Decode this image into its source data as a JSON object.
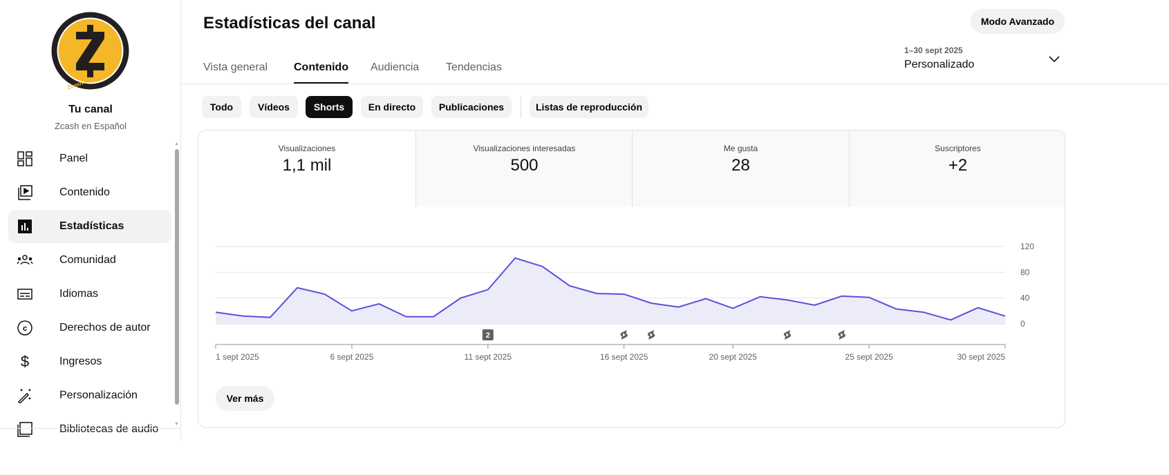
{
  "sidebar": {
    "channel_title": "Tu canal",
    "channel_name": "Zcash en Español",
    "avatar_text": "Zcash en español",
    "items": [
      {
        "label": "Panel",
        "icon": "dashboard-icon"
      },
      {
        "label": "Contenido",
        "icon": "content-icon"
      },
      {
        "label": "Estadísticas",
        "icon": "analytics-icon",
        "active": true
      },
      {
        "label": "Comunidad",
        "icon": "community-icon"
      },
      {
        "label": "Idiomas",
        "icon": "subtitles-icon"
      },
      {
        "label": "Derechos de autor",
        "icon": "copyright-icon"
      },
      {
        "label": "Ingresos",
        "icon": "dollar-icon"
      },
      {
        "label": "Personalización",
        "icon": "magic-wand-icon"
      },
      {
        "label": "Bibliotecas de audio",
        "icon": "audio-library-icon"
      }
    ]
  },
  "header": {
    "title": "Estadísticas del canal",
    "advanced_mode": "Modo Avanzado",
    "tabs": [
      "Vista general",
      "Contenido",
      "Audiencia",
      "Tendencias"
    ],
    "active_tab": "Contenido",
    "date_range": "1–30 sept 2025",
    "date_mode": "Personalizado"
  },
  "chips": [
    "Todo",
    "Vídeos",
    "Shorts",
    "En directo",
    "Publicaciones",
    "Listas de reproducción"
  ],
  "active_chip": "Shorts",
  "metrics": [
    {
      "label": "Visualizaciones",
      "value": "1,1 mil"
    },
    {
      "label": "Visualizaciones interesadas",
      "value": "500"
    },
    {
      "label": "Me gusta",
      "value": "28"
    },
    {
      "label": "Suscriptores",
      "value": "+2"
    }
  ],
  "see_more": "Ver más",
  "chart_data": {
    "type": "area",
    "title": "Visualizaciones",
    "x": [
      1,
      2,
      3,
      4,
      5,
      6,
      7,
      8,
      9,
      10,
      11,
      12,
      13,
      14,
      15,
      16,
      17,
      18,
      19,
      20,
      21,
      22,
      23,
      24,
      25,
      26,
      27,
      28,
      29,
      30
    ],
    "values": [
      18,
      12,
      10,
      56,
      46,
      20,
      31,
      11,
      11,
      40,
      53,
      102,
      89,
      59,
      47,
      46,
      32,
      26,
      39,
      24,
      42,
      37,
      29,
      43,
      41,
      23,
      18,
      6,
      25,
      12
    ],
    "ylim": [
      0,
      120
    ],
    "yticks": [
      "0",
      "40",
      "80",
      "120"
    ],
    "ytick_values": [
      0,
      40,
      80,
      120
    ],
    "xtick_labels": [
      {
        "day": 1,
        "label": "1 sept 2025"
      },
      {
        "day": 6,
        "label": "6 sept 2025"
      },
      {
        "day": 11,
        "label": "11 sept 2025"
      },
      {
        "day": 16,
        "label": "16 sept 2025"
      },
      {
        "day": 20,
        "label": "20 sept 2025"
      },
      {
        "day": 25,
        "label": "25 sept 2025"
      },
      {
        "day": 30,
        "label": "30 sept 2025"
      }
    ],
    "markers": [
      {
        "day": 11,
        "type": "count",
        "label": "2"
      },
      {
        "day": 16,
        "type": "short"
      },
      {
        "day": 17,
        "type": "short"
      },
      {
        "day": 22,
        "type": "short"
      },
      {
        "day": 24,
        "type": "short"
      }
    ],
    "line_color": "#5a4fdc",
    "fill_color": "#ecebf8",
    "grid": true
  }
}
